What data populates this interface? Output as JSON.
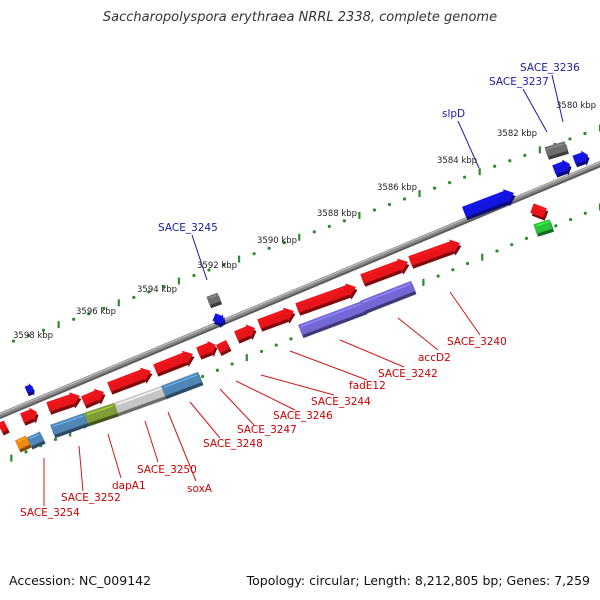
{
  "title": "Saccharopolyspora erythraea NRRL 2338, complete genome",
  "footer": {
    "accession": "Accession: NC_009142",
    "stats": "Topology: circular; Length: 8,212,805 bp; Genes: 7,259"
  },
  "colors": {
    "backbone": "#8a8a8a",
    "red_cds": "#e8141a",
    "blue_cds": "#1414e0",
    "gray_cds": "#6e6e6e",
    "green_cds": "#2cc43a",
    "orange_cds": "#ee8a14",
    "purple_feature": "#7468d6",
    "steel_feature": "#4f86b5",
    "olive_feature": "#7f9d36",
    "silver_feature": "#c6c6c6",
    "red_label": "#cc0000",
    "blue_label": "#1a1aa6"
  },
  "scale_ticks": [
    "3580 kbp",
    "3582 kbp",
    "3584 kbp",
    "3586 kbp",
    "3588 kbp",
    "3590 kbp",
    "3592 kbp",
    "3594 kbp",
    "3596 kbp",
    "3598 kbp"
  ],
  "gene_labels_top": [
    "SACE_3236",
    "SACE_3237",
    "slpD",
    "SACE_3245"
  ],
  "gene_labels_bottom": [
    "SACE_3240",
    "accD2",
    "SACE_3242",
    "fadE12",
    "SACE_3244",
    "SACE_3246",
    "SACE_3247",
    "SACE_3248",
    "soxA",
    "SACE_3250",
    "dapA1",
    "SACE_3252",
    "SACE_3254"
  ]
}
